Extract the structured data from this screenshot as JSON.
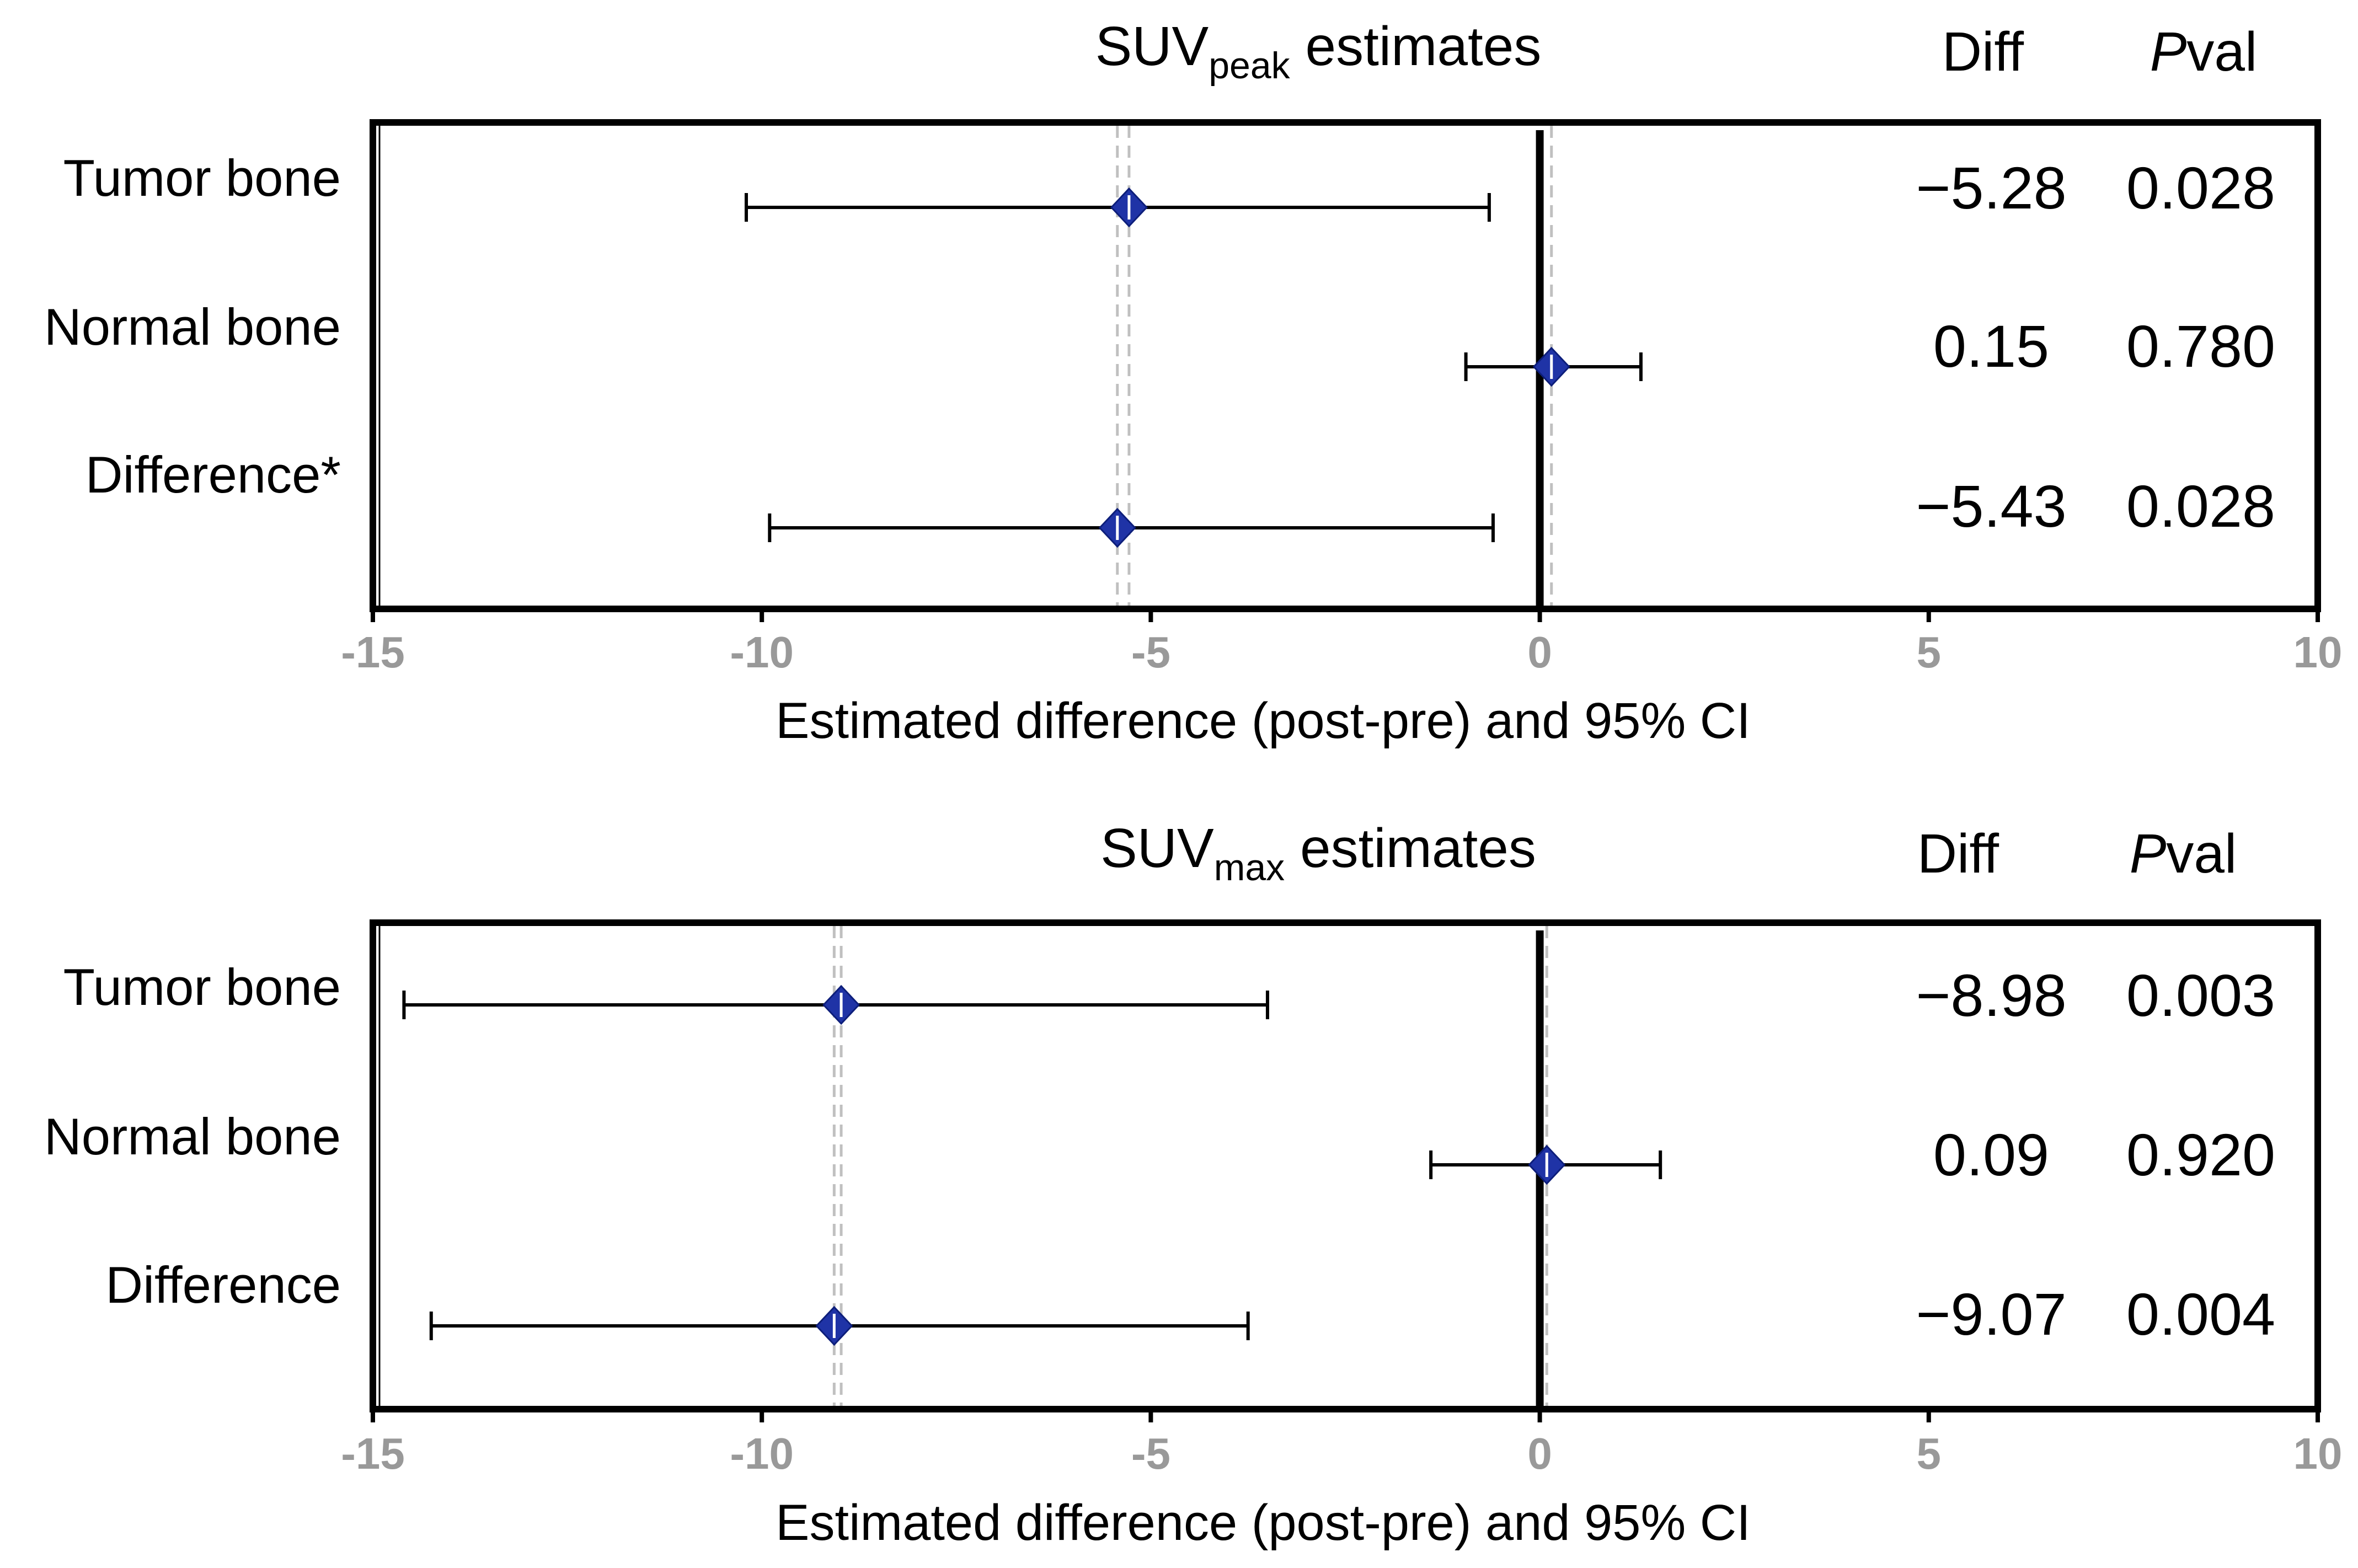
{
  "chart_data": [
    {
      "type": "forest",
      "title": {
        "prefix": "SUV",
        "subscript": "peak",
        "suffix": " estimates"
      },
      "diff_header": "Diff",
      "pval_header": {
        "italic": "P",
        "rest": "val"
      },
      "xlabel": "Estimated difference (post-pre) and 95% CI",
      "xlim": [
        -15,
        10
      ],
      "xticks": [
        -15,
        -10,
        -5,
        0,
        5,
        10
      ],
      "xtick_labels": [
        "-15",
        "-10",
        "-5",
        "0",
        "5",
        "10"
      ],
      "reference_line": 0,
      "rows": [
        {
          "label": "Tumor bone",
          "estimate": -5.28,
          "ci": [
            -10.2,
            -0.65
          ],
          "diff": "−5.28",
          "pval": "0.028"
        },
        {
          "label": "Normal bone",
          "estimate": 0.15,
          "ci": [
            -0.95,
            1.3
          ],
          "diff": "0.15",
          "pval": "0.780"
        },
        {
          "label": "Difference*",
          "estimate": -5.43,
          "ci": [
            -9.9,
            -0.6
          ],
          "diff": "−5.43",
          "pval": "0.028"
        }
      ],
      "dashed_lines": [
        -5.43,
        -5.28,
        0.15
      ]
    },
    {
      "type": "forest",
      "title": {
        "prefix": "SUV",
        "subscript": "max",
        "suffix": " estimates"
      },
      "diff_header": "Diff",
      "pval_header": {
        "italic": "P",
        "rest": "val"
      },
      "xlabel": "Estimated difference (post-pre) and 95% CI",
      "xlim": [
        -15,
        10
      ],
      "xticks": [
        -15,
        -10,
        -5,
        0,
        5,
        10
      ],
      "xtick_labels": [
        "-15",
        "-10",
        "-5",
        "0",
        "5",
        "10"
      ],
      "reference_line": 0,
      "rows": [
        {
          "label": "Tumor bone",
          "estimate": -8.98,
          "ci": [
            -14.6,
            -3.5
          ],
          "diff": "−8.98",
          "pval": "0.003"
        },
        {
          "label": "Normal bone",
          "estimate": 0.09,
          "ci": [
            -1.4,
            1.55
          ],
          "diff": "0.09",
          "pval": "0.920"
        },
        {
          "label": "Difference",
          "estimate": -9.07,
          "ci": [
            -14.25,
            -3.75
          ],
          "diff": "−9.07",
          "pval": "0.004"
        }
      ],
      "dashed_lines": [
        -9.07,
        -8.98,
        0.09
      ]
    }
  ],
  "colors": {
    "marker": "#1f33a6",
    "axis": "#000000",
    "tick_label": "#999999",
    "dashed": "#c0c0c0",
    "text": "#000000"
  }
}
